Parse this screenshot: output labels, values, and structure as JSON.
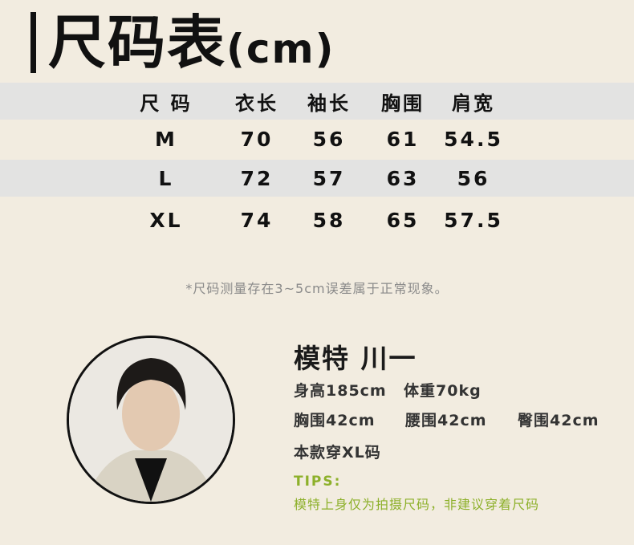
{
  "title": {
    "main": "尺码表",
    "unit": "(cm)"
  },
  "table": {
    "headers": [
      "尺 码",
      "衣长",
      "袖长",
      "胸围",
      "肩宽"
    ],
    "rows": [
      [
        "M",
        "70",
        "56",
        "61",
        "54.5"
      ],
      [
        "L",
        "72",
        "57",
        "63",
        "56"
      ],
      [
        "XL",
        "74",
        "58",
        "65",
        "57.5"
      ]
    ]
  },
  "note": "*尺码测量存在3~5cm误差属于正常现象。",
  "model": {
    "name": "模特 川一",
    "height": "身高185cm",
    "weight": "体重70kg",
    "chest": "胸围42cm",
    "waist": "腰围42cm",
    "hip": "臀围42cm",
    "wears": "本款穿XL码",
    "tips_label": "TIPS:",
    "tips_text": "模特上身仅为拍摄尺码，非建议穿着尺码"
  },
  "colors": {
    "background": "#f2ece0",
    "band": "#e3e3e2",
    "tips": "#8db02a"
  }
}
